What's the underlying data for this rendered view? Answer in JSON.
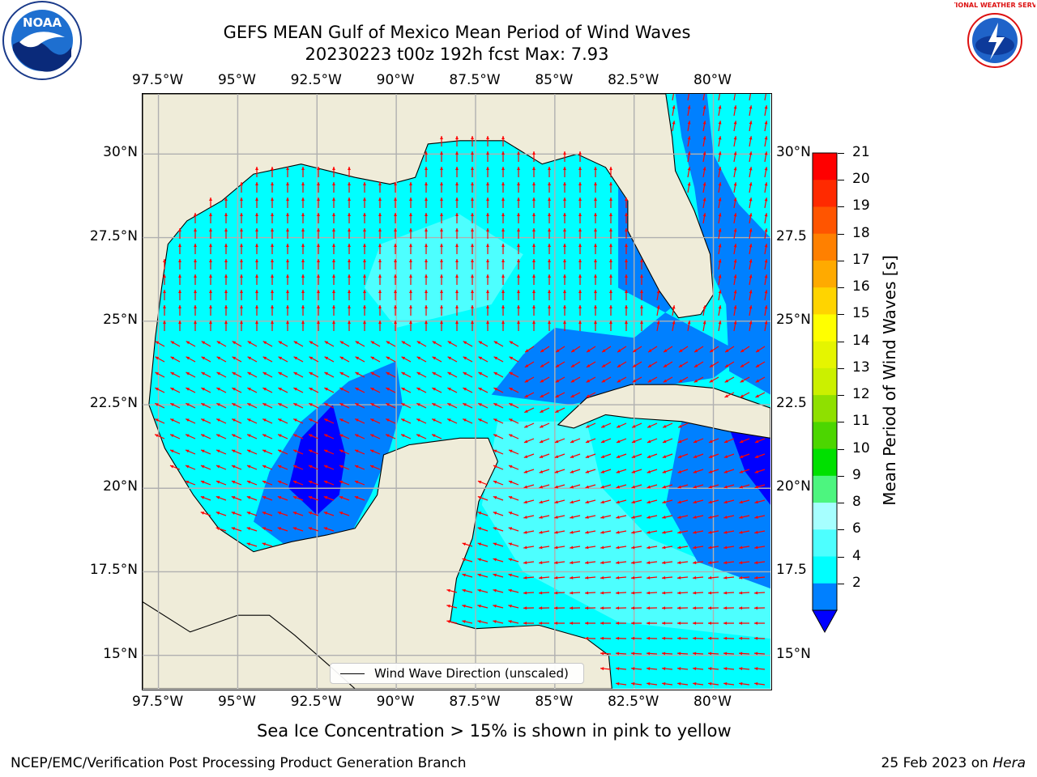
{
  "title": {
    "line1": "GEFS MEAN Gulf of Mexico Mean Period of Wind Waves",
    "line2": "20230223 t00z 192h fcst   Max: 7.93"
  },
  "axes": {
    "lon_ticks": [
      "97.5°W",
      "95°W",
      "92.5°W",
      "90°W",
      "87.5°W",
      "85°W",
      "82.5°W",
      "80°W"
    ],
    "lat_ticks_left": [
      "30°N",
      "27.5°N",
      "25°N",
      "22.5°N",
      "20°N",
      "17.5°N",
      "15°N"
    ],
    "lat_ticks_right": [
      "30°N",
      "27.5",
      "25°N",
      "22.5",
      "20°N",
      "17.5",
      "15°N"
    ],
    "lon_values": [
      -97.5,
      -95,
      -92.5,
      -90,
      -87.5,
      -85,
      -82.5,
      -80
    ],
    "lat_values": [
      30,
      27.5,
      25,
      22.5,
      20,
      17.5,
      15
    ],
    "extent": {
      "lon_min": -98,
      "lon_max": -78.2,
      "lat_min": 14,
      "lat_max": 31.8
    }
  },
  "colorbar": {
    "label": "Mean Period of Wind Waves [s]",
    "ticks": [
      "21",
      "20",
      "19",
      "18",
      "17",
      "16",
      "15",
      "14",
      "13",
      "12",
      "11",
      "10",
      "9",
      "8",
      "6",
      "4",
      "2"
    ],
    "colors": [
      "#ff0000",
      "#ff2a00",
      "#ff5500",
      "#ff8000",
      "#ffaa00",
      "#ffd400",
      "#ffff00",
      "#e5f500",
      "#cbf000",
      "#8fe000",
      "#4cd600",
      "#00e000",
      "#4df57f",
      "#a6ffff",
      "#4dffff",
      "#00ffff",
      "#0080ff"
    ],
    "under_color": "#0000ff"
  },
  "legend": {
    "label": "Wind Wave Direction (unscaled)"
  },
  "subtitle": "Sea Ice Concentration > 15% is shown in pink to yellow",
  "footer": {
    "left": "NCEP/EMC/Verification Post Processing Product Generation Branch",
    "right_date": "25 Feb 2023 on ",
    "right_host": "Hera"
  },
  "logos": {
    "noaa": "NOAA",
    "nws": "NATIONAL WEATHER SERVICE"
  },
  "map_colors": {
    "land": "#efecd9",
    "sea_main": "#00ffff",
    "sea_light": "#4dffff",
    "sea_mid": "#0080ff",
    "sea_deep": "#0000ff",
    "arrow": "#ff0000",
    "grid": "#b0b0b0"
  }
}
